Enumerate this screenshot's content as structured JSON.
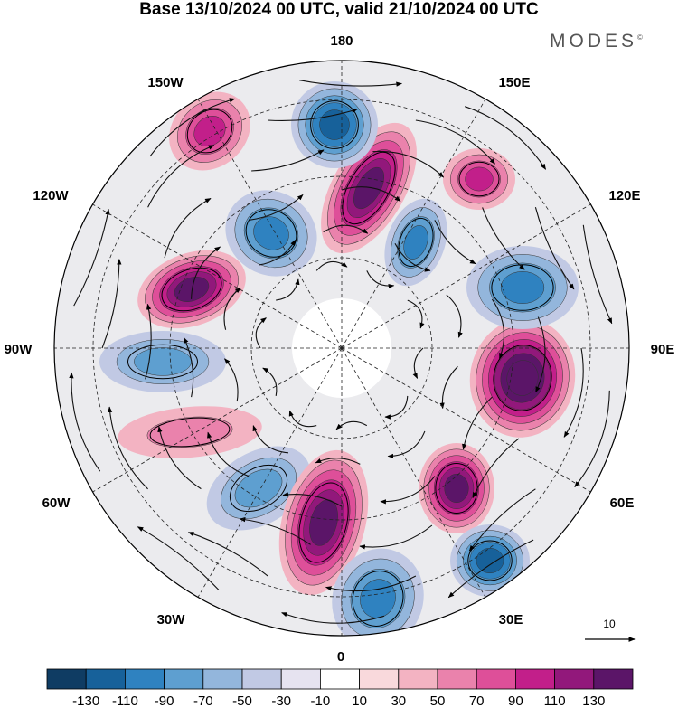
{
  "header": {
    "title": "Base 13/10/2024 00 UTC, valid 21/10/2024 00 UTC",
    "brand": "MODES",
    "brand_mark": "©"
  },
  "map": {
    "projection": "north-polar-stereographic",
    "longitude_labels": {
      "top": "180",
      "top_left": "150W",
      "top_right": "150E",
      "upper_left": "120W",
      "upper_right": "120E",
      "left": "90W",
      "right": "90E",
      "lower_left": "60W",
      "lower_right": "60E",
      "bottom_left": "30W",
      "bottom_right": "30E",
      "bottom": "0"
    },
    "reference_vector_label": "10",
    "cells": [
      {
        "type": "pos",
        "level": 6
      },
      {
        "type": "neg",
        "level": 4
      },
      {
        "type": "pos",
        "level": 6
      },
      {
        "type": "neg",
        "level": 5
      },
      {
        "type": "pos",
        "level": 4
      },
      {
        "type": "neg",
        "level": 4
      },
      {
        "type": "pos",
        "level": 7
      },
      {
        "type": "neg",
        "level": 4
      },
      {
        "type": "pos",
        "level": 4
      },
      {
        "type": "neg",
        "level": 3
      },
      {
        "type": "pos",
        "level": 2
      },
      {
        "type": "neg",
        "level": 3
      }
    ]
  },
  "colorbar": {
    "colors": [
      "#0f3c63",
      "#17619a",
      "#2f82c0",
      "#5e9fd0",
      "#93b6dc",
      "#c1c9e4",
      "#e6e3f0",
      "#ffffff",
      "#f9d9dc",
      "#f3b3c2",
      "#ea82ac",
      "#de4f99",
      "#c21f8a",
      "#92187b",
      "#5b1568"
    ],
    "tick_labels": [
      "-130",
      "-110",
      "-90",
      "-70",
      "-50",
      "-30",
      "-10",
      "10",
      "30",
      "50",
      "70",
      "90",
      "110",
      "130"
    ]
  }
}
